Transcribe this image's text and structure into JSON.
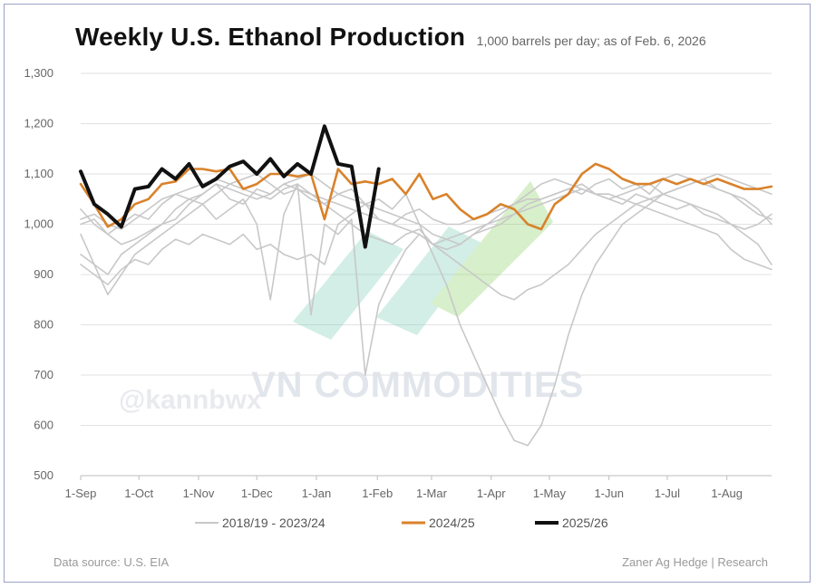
{
  "header": {
    "title": "Weekly U.S. Ethanol Production",
    "subtitle": "1,000 barrels per day; as of Feb. 6, 2026"
  },
  "footer": {
    "source": "Data source: U.S. EIA",
    "credit": "Zaner Ag Hedge | Research"
  },
  "watermark": {
    "text": "VN COMMODITIES",
    "handle": "@kannbwx"
  },
  "chart_data": {
    "type": "line",
    "title": "Weekly U.S. Ethanol Production",
    "subtitle": "1,000 barrels per day; as of Feb. 6, 2026",
    "xlabel": "",
    "ylabel": "",
    "ylim": [
      500,
      1300
    ],
    "yticks": [
      500,
      600,
      700,
      800,
      900,
      1000,
      1100,
      1200,
      1300
    ],
    "ytick_labels": [
      "500",
      "600",
      "700",
      "800",
      "900",
      "1,000",
      "1,100",
      "1,200",
      "1,300"
    ],
    "xtick_labels": [
      "1-Sep",
      "1-Oct",
      "1-Nov",
      "1-Dec",
      "1-Jan",
      "1-Feb",
      "1-Mar",
      "1-Apr",
      "1-May",
      "1-Jun",
      "1-Jul",
      "1-Aug"
    ],
    "grid": true,
    "legend_position": "bottom",
    "legend": [
      "2018/19 - 2023/24",
      "2024/25",
      "2025/26"
    ],
    "colors": {
      "historical": "#c8c8c8",
      "2024/25": "#d9822b",
      "2025/26": "#111111"
    },
    "series": [
      {
        "name": "2018/19 - 2023/24",
        "group": "historical",
        "week": [
          0,
          1,
          2,
          3,
          4,
          5,
          6,
          7,
          8,
          9,
          10,
          11,
          12,
          13,
          14,
          15,
          16,
          17,
          18,
          19,
          20,
          21,
          22,
          23,
          24,
          25,
          26,
          27,
          28,
          29,
          30,
          31,
          32,
          33,
          34,
          35,
          36,
          37,
          38,
          39,
          40,
          41,
          42,
          43,
          44,
          45,
          46,
          47,
          48,
          49,
          50,
          51
        ],
        "values": [
          1030,
          1000,
          980,
          960,
          970,
          985,
          1000,
          1030,
          1050,
          1060,
          1080,
          1050,
          1040,
          1070,
          1060,
          1080,
          1090,
          1100,
          1080,
          1060,
          1070,
          1040,
          1050,
          1030,
          1060,
          1000,
          940,
          880,
          800,
          740,
          680,
          620,
          570,
          560,
          600,
          680,
          780,
          860,
          920,
          960,
          1000,
          1020,
          1040,
          1060,
          1070,
          1080,
          1090,
          1070,
          1060,
          1040,
          1020,
          1010
        ]
      },
      {
        "name": "2018/19 - 2023/24",
        "group": "historical",
        "week": [
          0,
          1,
          2,
          3,
          4,
          5,
          6,
          7,
          8,
          9,
          10,
          11,
          12,
          13,
          14,
          15,
          16,
          17,
          18,
          19,
          20,
          21,
          22,
          23,
          24,
          25,
          26,
          27,
          28,
          29,
          30,
          31,
          32,
          33,
          34,
          35,
          36,
          37,
          38,
          39,
          40,
          41,
          42,
          43,
          44,
          45,
          46,
          47,
          48,
          49,
          50,
          51
        ],
        "values": [
          980,
          920,
          860,
          900,
          940,
          960,
          980,
          1000,
          1020,
          1040,
          1010,
          1030,
          1050,
          1000,
          850,
          1020,
          1080,
          820,
          1000,
          980,
          1010,
          700,
          840,
          900,
          950,
          980,
          960,
          970,
          980,
          990,
          1000,
          1010,
          1020,
          1040,
          1050,
          1060,
          1070,
          1060,
          1080,
          1090,
          1070,
          1080,
          1060,
          1090,
          1100,
          1090,
          1080,
          1070,
          1060,
          1050,
          1030,
          1000
        ]
      },
      {
        "name": "2018/19 - 2023/24",
        "group": "historical",
        "week": [
          0,
          1,
          2,
          3,
          4,
          5,
          6,
          7,
          8,
          9,
          10,
          11,
          12,
          13,
          14,
          15,
          16,
          17,
          18,
          19,
          20,
          21,
          22,
          23,
          24,
          25,
          26,
          27,
          28,
          29,
          30,
          31,
          32,
          33,
          34,
          35,
          36,
          37,
          38,
          39,
          40,
          41,
          42,
          43,
          44,
          45,
          46,
          47,
          48,
          49,
          50,
          51
        ],
        "values": [
          940,
          920,
          900,
          940,
          960,
          980,
          1000,
          1010,
          1040,
          1060,
          1080,
          1070,
          1060,
          1050,
          1060,
          1080,
          1070,
          1060,
          1040,
          1020,
          1000,
          980,
          970,
          960,
          980,
          990,
          960,
          950,
          960,
          980,
          990,
          1000,
          1020,
          1030,
          1040,
          1050,
          1060,
          1070,
          1060,
          1050,
          1040,
          1060,
          1050,
          1040,
          1030,
          1040,
          1020,
          1010,
          1000,
          990,
          1000,
          1020
        ]
      },
      {
        "name": "2018/19 - 2023/24",
        "group": "historical",
        "week": [
          0,
          1,
          2,
          3,
          4,
          5,
          6,
          7,
          8,
          9,
          10,
          11,
          12,
          13,
          14,
          15,
          16,
          17,
          18,
          19,
          20,
          21,
          22,
          23,
          24,
          25,
          26,
          27,
          28,
          29,
          30,
          31,
          32,
          33,
          34,
          35,
          36,
          37,
          38,
          39,
          40,
          41,
          42,
          43,
          44,
          45,
          46,
          47,
          48,
          49,
          50,
          51
        ],
        "values": [
          920,
          900,
          880,
          910,
          930,
          920,
          950,
          970,
          960,
          980,
          970,
          960,
          980,
          950,
          960,
          940,
          930,
          940,
          920,
          1000,
          1020,
          1040,
          1010,
          1000,
          1020,
          1030,
          1010,
          1000,
          1000,
          1010,
          1020,
          1030,
          1040,
          1050,
          1050,
          1060,
          1070,
          1080,
          1060,
          1050,
          1060,
          1070,
          1080,
          1060,
          1050,
          1040,
          1030,
          1020,
          1000,
          980,
          960,
          920
        ]
      },
      {
        "name": "2018/19 - 2023/24",
        "group": "historical",
        "week": [
          0,
          1,
          2,
          3,
          4,
          5,
          6,
          7,
          8,
          9,
          10,
          11,
          12,
          13,
          14,
          15,
          16,
          17,
          18,
          19,
          20,
          21,
          22,
          23,
          24,
          25,
          26,
          27,
          28,
          29,
          30,
          31,
          32,
          33,
          34,
          35,
          36,
          37,
          38,
          39,
          40,
          41,
          42,
          43,
          44,
          45,
          46,
          47,
          48,
          49,
          50,
          51
        ],
        "values": [
          1000,
          1010,
          980,
          1000,
          1020,
          1010,
          1040,
          1060,
          1050,
          1040,
          1060,
          1080,
          1090,
          1100,
          1080,
          1060,
          1070,
          1050,
          1040,
          1060,
          1050,
          1040,
          1030,
          1020,
          1010,
          1000,
          980,
          970,
          960,
          980,
          1000,
          1020,
          1040,
          1060,
          1080,
          1090,
          1080,
          1070,
          1060,
          1060,
          1050,
          1040,
          1030,
          1020,
          1010,
          1000,
          990,
          980,
          950,
          930,
          920,
          910
        ]
      },
      {
        "name": "2018/19 - 2023/24",
        "group": "historical",
        "week": [
          0,
          1,
          2,
          3,
          4,
          5,
          6,
          7,
          8,
          9,
          10,
          11,
          12,
          13,
          14,
          15,
          16,
          17,
          18,
          19,
          20,
          21,
          22,
          23,
          24,
          25,
          26,
          27,
          28,
          29,
          30,
          31,
          32,
          33,
          34,
          35,
          36,
          37,
          38,
          39,
          40,
          41,
          42,
          43,
          44,
          45,
          46,
          47,
          48,
          49,
          50,
          51
        ],
        "values": [
          1010,
          1020,
          1000,
          990,
          1010,
          1030,
          1050,
          1060,
          1070,
          1080,
          1090,
          1080,
          1070,
          1060,
          1050,
          1070,
          1080,
          1060,
          1050,
          1040,
          1030,
          1020,
          1010,
          1000,
          990,
          980,
          960,
          940,
          920,
          900,
          880,
          860,
          850,
          870,
          880,
          900,
          920,
          950,
          980,
          1000,
          1020,
          1040,
          1050,
          1060,
          1070,
          1080,
          1090,
          1100,
          1090,
          1080,
          1070,
          1060
        ]
      },
      {
        "name": "2024/25",
        "group": "2024/25",
        "week": [
          0,
          1,
          2,
          3,
          4,
          5,
          6,
          7,
          8,
          9,
          10,
          11,
          12,
          13,
          14,
          15,
          16,
          17,
          18,
          19,
          20,
          21,
          22,
          23,
          24,
          25,
          26,
          27,
          28,
          29,
          30,
          31,
          32,
          33,
          34,
          35,
          36,
          37,
          38,
          39,
          40,
          41,
          42,
          43,
          44,
          45,
          46,
          47,
          48,
          49,
          50,
          51
        ],
        "values": [
          1080,
          1040,
          995,
          1010,
          1040,
          1050,
          1080,
          1085,
          1110,
          1110,
          1105,
          1110,
          1070,
          1080,
          1100,
          1100,
          1095,
          1100,
          1010,
          1110,
          1080,
          1085,
          1080,
          1090,
          1060,
          1100,
          1050,
          1060,
          1030,
          1010,
          1020,
          1040,
          1030,
          1000,
          990,
          1040,
          1060,
          1100,
          1120,
          1110,
          1090,
          1080,
          1080,
          1090,
          1080,
          1090,
          1080,
          1090,
          1080,
          1070,
          1070,
          1075
        ]
      },
      {
        "name": "2025/26",
        "group": "2025/26",
        "week": [
          0,
          1,
          2,
          3,
          4,
          5,
          6,
          7,
          8,
          9,
          10,
          11,
          12,
          13,
          14,
          15,
          16,
          17,
          18,
          19,
          20,
          21,
          22
        ],
        "values": [
          1105,
          1040,
          1020,
          995,
          1070,
          1075,
          1110,
          1090,
          1120,
          1075,
          1090,
          1115,
          1125,
          1100,
          1130,
          1095,
          1120,
          1100,
          1195,
          1120,
          1115,
          955,
          1110
        ]
      }
    ]
  }
}
